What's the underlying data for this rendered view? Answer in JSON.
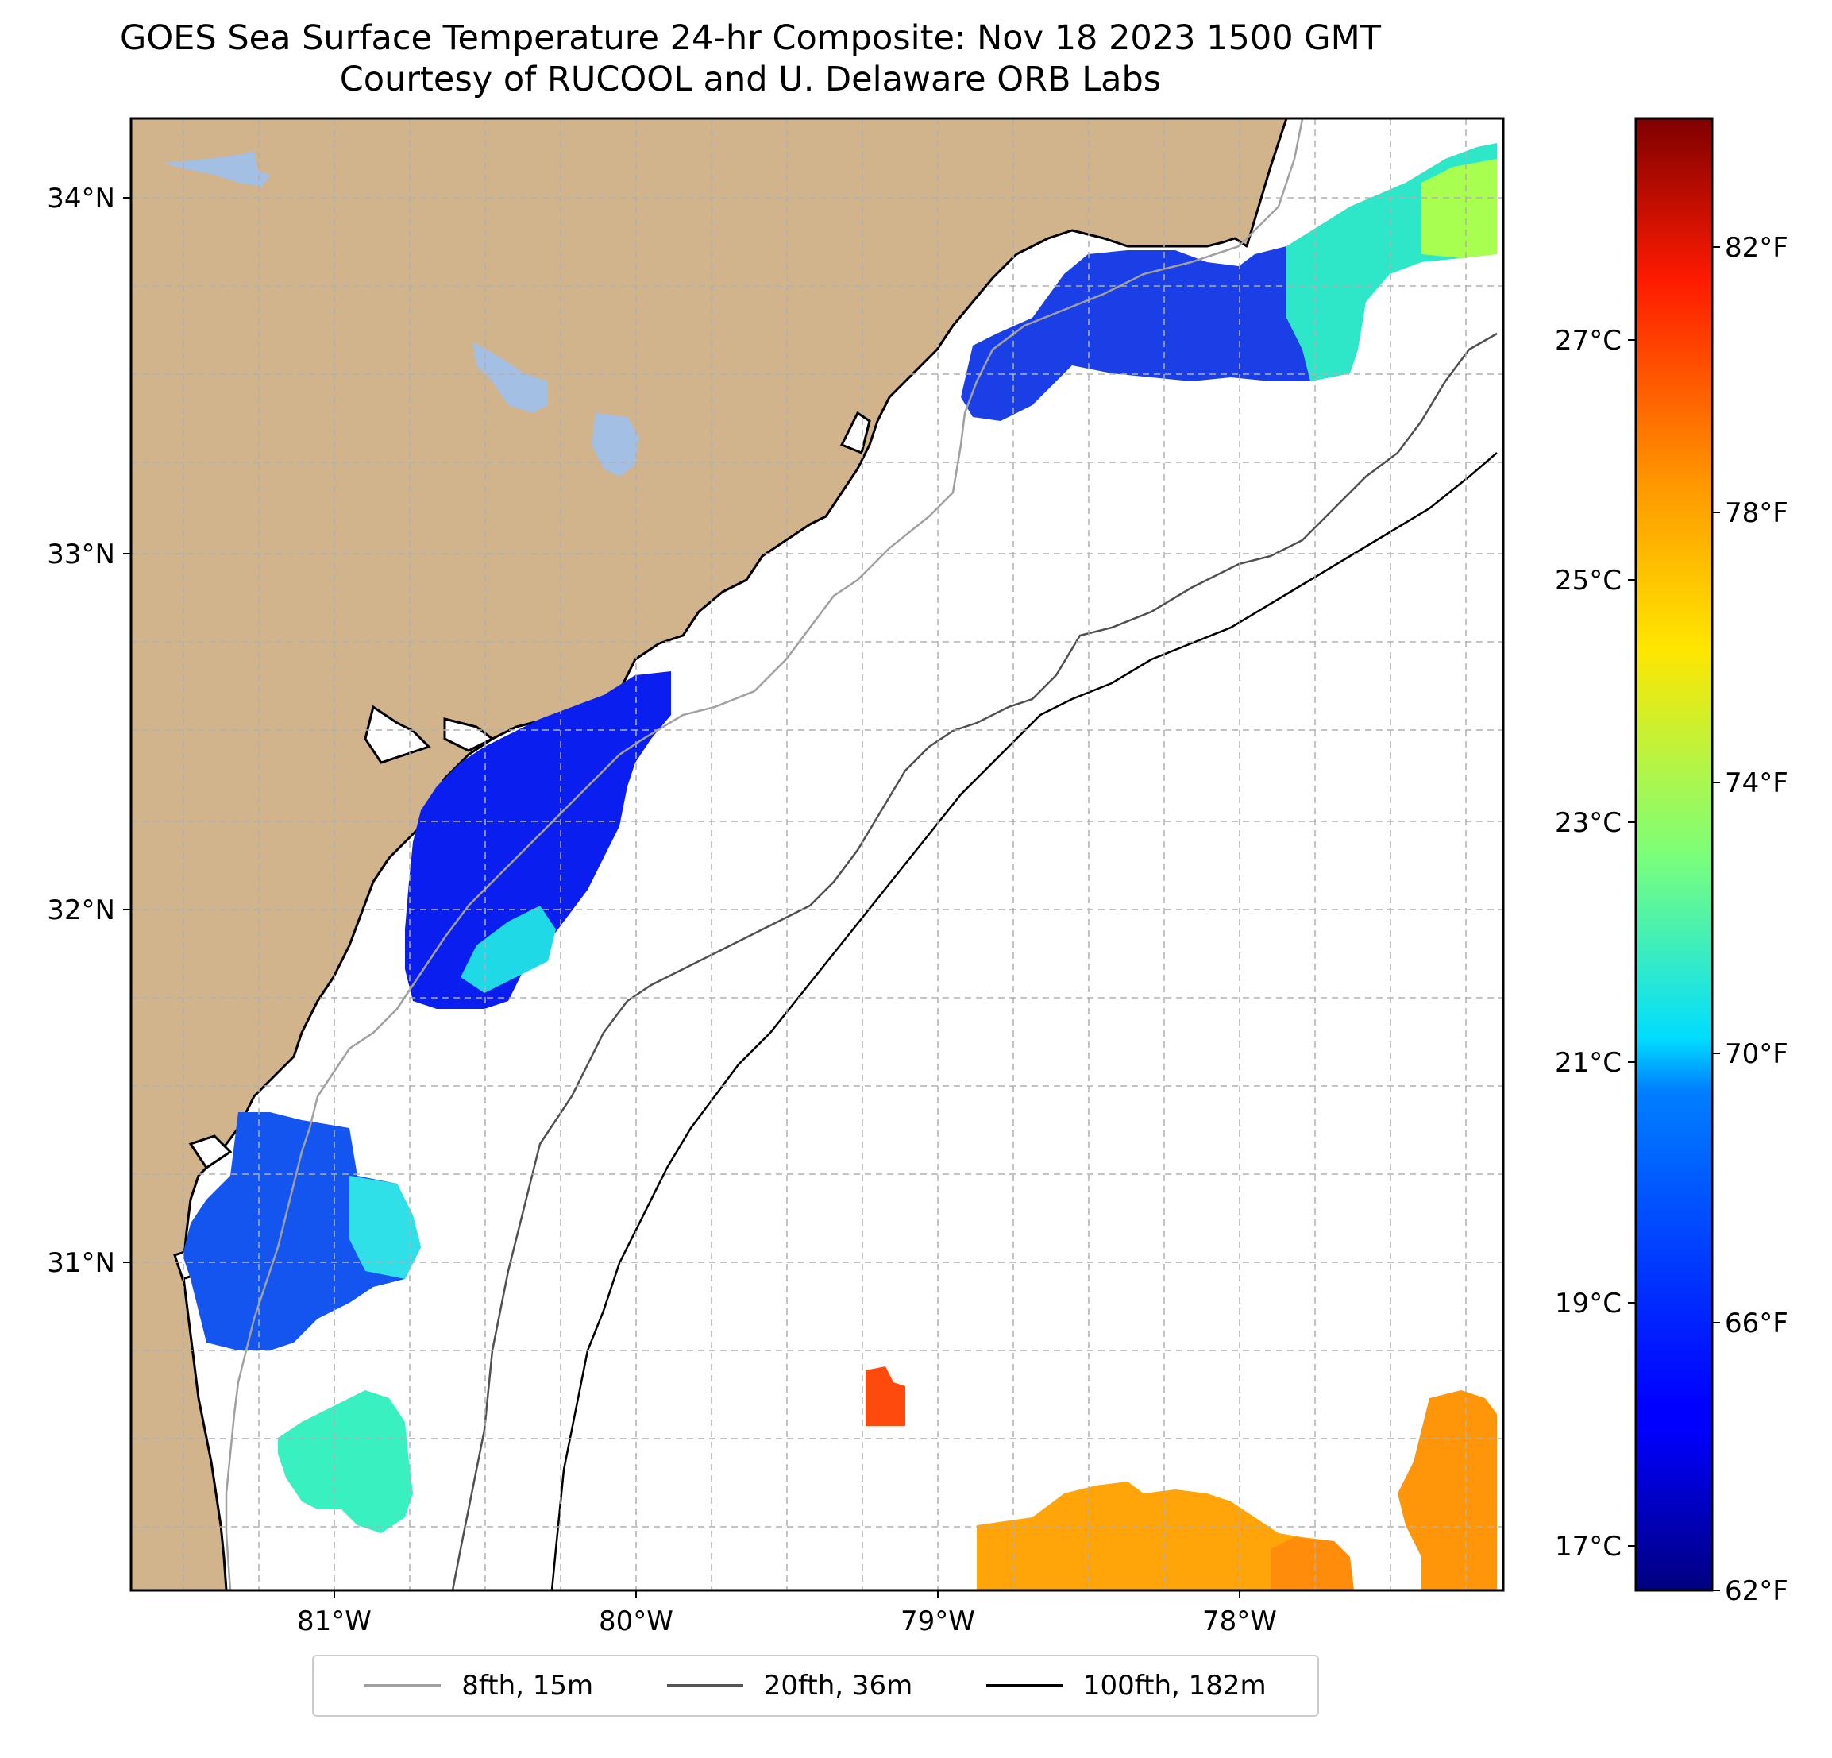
{
  "title": {
    "line1": "GOES Sea Surface Temperature 24-hr Composite: Nov 18 2023 1500 GMT",
    "line2": "Courtesy of RUCOOL and U. Delaware ORB Labs"
  },
  "map": {
    "lon_range": [
      -81.68,
      -77.1
    ],
    "lat_range": [
      30.1,
      34.22
    ],
    "lat_ticks": [
      {
        "value": 31,
        "label": "31°N"
      },
      {
        "value": 32,
        "label": "32°N"
      },
      {
        "value": 33,
        "label": "33°N"
      },
      {
        "value": 34,
        "label": "34°N"
      }
    ],
    "lon_ticks": [
      {
        "value": -81,
        "label": "81°W"
      },
      {
        "value": -80,
        "label": "80°W"
      },
      {
        "value": -79,
        "label": "79°W"
      },
      {
        "value": -78,
        "label": "78°W"
      }
    ],
    "gridlines": "dashed",
    "colors": {
      "land": "#d2b48c",
      "lakes": "#a3bfe3",
      "ocean": "#ffffff",
      "coastline": "#000000",
      "grid": "#b0b0b0"
    }
  },
  "colorbar": {
    "colormap": "jet",
    "range_f": [
      62,
      84
    ],
    "fahrenheit_ticks": [
      {
        "value": 62,
        "label": "62°F"
      },
      {
        "value": 66,
        "label": "66°F"
      },
      {
        "value": 70,
        "label": "70°F"
      },
      {
        "value": 74,
        "label": "74°F"
      },
      {
        "value": 78,
        "label": "78°F"
      },
      {
        "value": 82,
        "label": "82°F"
      }
    ],
    "celsius_ticks": [
      {
        "value": 17,
        "label": "17°C"
      },
      {
        "value": 19,
        "label": "19°C"
      },
      {
        "value": 21,
        "label": "21°C"
      },
      {
        "value": 23,
        "label": "23°C"
      },
      {
        "value": 25,
        "label": "25°C"
      },
      {
        "value": 27,
        "label": "27°C"
      }
    ]
  },
  "legend": {
    "items": [
      {
        "label": "8fth, 15m",
        "color": "#a0a0a0"
      },
      {
        "label": "20fth, 36m",
        "color": "#555555"
      },
      {
        "label": "100fth, 182m",
        "color": "#000000"
      }
    ]
  }
}
